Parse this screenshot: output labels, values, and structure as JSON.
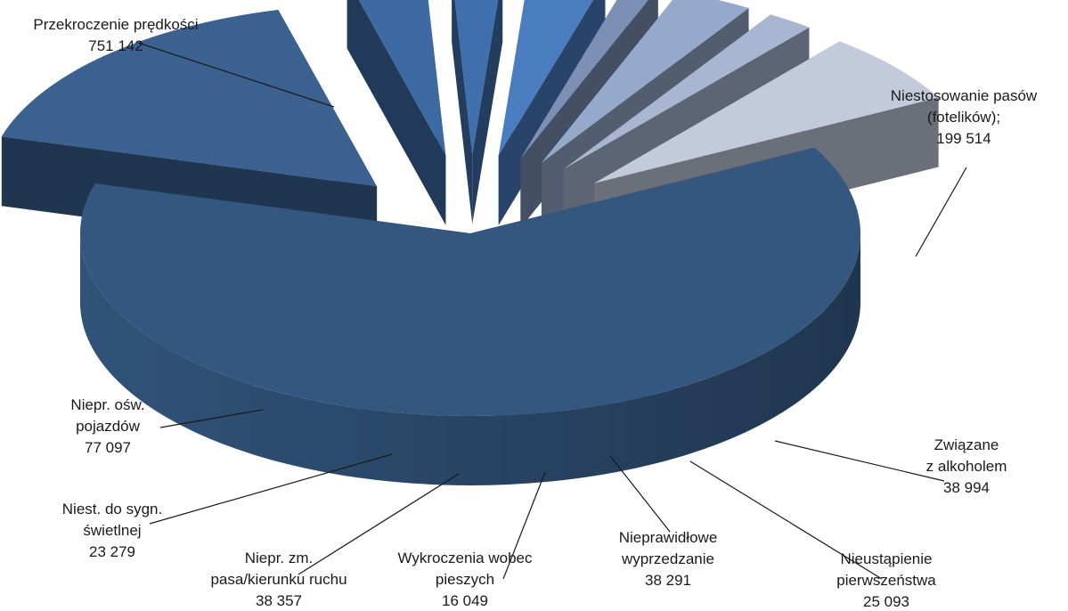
{
  "chart_data": {
    "type": "pie",
    "title": "",
    "slices": [
      {
        "label_lines": [
          "Przekroczenie prędkości"
        ],
        "value_text": "751 142",
        "value": 751142,
        "color": "#34577f"
      },
      {
        "label_lines": [
          "Niestosowanie pasów",
          "(fotelików);"
        ],
        "value_text": "199 514",
        "value": 199514,
        "color": "#3a6190"
      },
      {
        "label_lines": [
          "Związane",
          "z alkoholem"
        ],
        "value_text": "38 994",
        "value": 38994,
        "color": "#3d6aa3"
      },
      {
        "label_lines": [
          "Nieustąpienie",
          "pierwszeństwa"
        ],
        "value_text": "25 093",
        "value": 25093,
        "color": "#3f6fac"
      },
      {
        "label_lines": [
          "Nieprawidłowe",
          "wyprzedzanie"
        ],
        "value_text": "38 291",
        "value": 38291,
        "color": "#4a7cc0"
      },
      {
        "label_lines": [
          "Wykroczenia wobec",
          "pieszych"
        ],
        "value_text": "16 049",
        "value": 16049,
        "color": "#7c8fb4"
      },
      {
        "label_lines": [
          "Niepr. zm.",
          "pasa/kierunku ruchu"
        ],
        "value_text": "38 357",
        "value": 38357,
        "color": "#95a9cb"
      },
      {
        "label_lines": [
          "Niest. do sygn.",
          "świetlnej"
        ],
        "value_text": "23 279",
        "value": 23279,
        "color": "#a9b6d2"
      },
      {
        "label_lines": [
          "Niepr. ośw.",
          "pojazdów"
        ],
        "value_text": "77 097",
        "value": 77097,
        "color": "#c3cadc"
      }
    ]
  }
}
